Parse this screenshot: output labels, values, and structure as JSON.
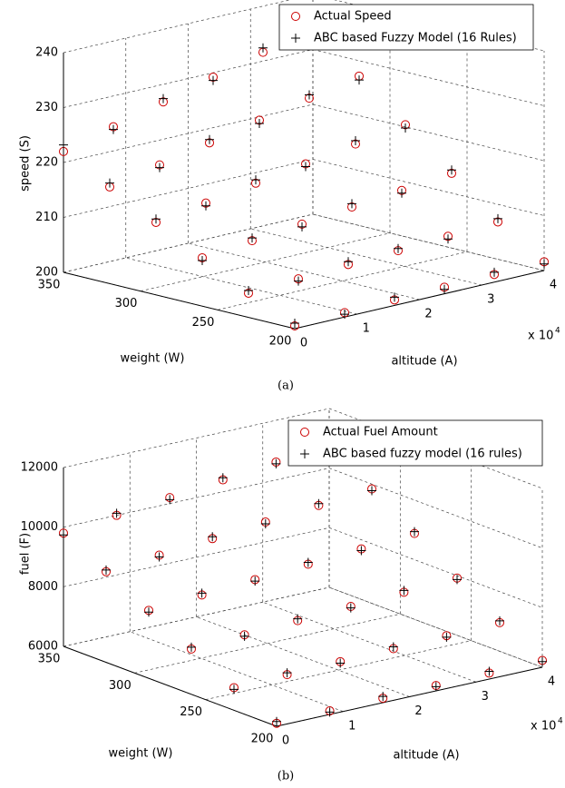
{
  "chart_data": [
    {
      "type": "scatter",
      "zlabel": "speed (S)",
      "ylabel": "weight (W)",
      "xlabel": "altitude (A)",
      "x_multiplier": {
        "base": "x 10",
        "exponent": 4
      },
      "caption": "(a)",
      "grid": true,
      "xlim": [
        0,
        4
      ],
      "xticks": [
        0,
        1,
        2,
        3,
        4
      ],
      "ylim": [
        200,
        350
      ],
      "yticks": [
        200,
        250,
        300,
        350
      ],
      "zlim": [
        200,
        240
      ],
      "zticks": [
        200,
        210,
        220,
        230,
        240
      ],
      "series": [
        {
          "name": "Actual Speed",
          "color": "#cc0000",
          "marker": "o",
          "x": [
            0,
            0.8,
            1.6,
            2.4,
            3.2,
            4,
            0,
            0.8,
            1.6,
            2.4,
            3.2,
            4,
            0,
            0.8,
            1.6,
            2.4,
            3.2,
            4,
            0,
            0.8,
            1.6,
            2.4,
            3.2,
            4,
            0,
            0.8,
            1.6,
            2.4,
            3.2,
            4,
            0,
            0.8,
            1.6,
            2.4,
            3.2,
            4
          ],
          "y": [
            200,
            200,
            200,
            200,
            200,
            200,
            230,
            230,
            230,
            230,
            230,
            230,
            260,
            260,
            260,
            260,
            260,
            260,
            290,
            290,
            290,
            290,
            290,
            290,
            320,
            320,
            320,
            320,
            320,
            320,
            350,
            350,
            350,
            350,
            350,
            350
          ],
          "z": [
            200.5,
            200.8,
            201,
            201.2,
            201.4,
            201.6,
            204.4,
            204.9,
            205.4,
            205.8,
            206.3,
            206.8,
            208.8,
            209.8,
            210.7,
            211.7,
            212.6,
            213.6,
            213.2,
            214.6,
            216.1,
            217.5,
            219,
            220.4,
            217.6,
            219.5,
            221.4,
            223.4,
            225.3,
            227.2,
            222,
            224.4,
            226.8,
            229.2,
            231.6,
            234
          ]
        },
        {
          "name": "ABC based Fuzzy Model (16 Rules)",
          "color": "#000000",
          "marker": "+",
          "x": [
            0,
            0.8,
            1.6,
            2.4,
            3.2,
            4,
            0,
            0.8,
            1.6,
            2.4,
            3.2,
            4,
            0,
            0.8,
            1.6,
            2.4,
            3.2,
            4,
            0,
            0.8,
            1.6,
            2.4,
            3.2,
            4,
            0,
            0.8,
            1.6,
            2.4,
            3.2,
            4,
            0,
            0.8,
            1.6,
            2.4,
            3.2,
            4
          ],
          "y": [
            200,
            200,
            200,
            200,
            200,
            200,
            230,
            230,
            230,
            230,
            230,
            230,
            260,
            260,
            260,
            260,
            260,
            260,
            290,
            290,
            290,
            290,
            290,
            290,
            320,
            320,
            320,
            320,
            320,
            320,
            350,
            350,
            350,
            350,
            350,
            350
          ],
          "z": [
            201,
            200.5,
            201.5,
            200.8,
            201.8,
            201.2,
            204.9,
            204.5,
            205.9,
            206.2,
            205.8,
            207.4,
            208.3,
            210.3,
            210.2,
            212.3,
            212.1,
            214.2,
            213.8,
            214.1,
            216.7,
            217,
            219.6,
            219.8,
            218.3,
            219,
            222,
            222.8,
            225.9,
            226.5,
            223.2,
            223.9,
            227.4,
            228.6,
            232.4,
            232.8
          ]
        }
      ]
    },
    {
      "type": "scatter",
      "zlabel": "fuel (F)",
      "ylabel": "weight (W)",
      "xlabel": "altitude (A)",
      "x_multiplier": {
        "base": "x 10",
        "exponent": 4
      },
      "caption": "(b)",
      "grid": true,
      "xlim": [
        0,
        4
      ],
      "xticks": [
        0,
        1,
        2,
        3,
        4
      ],
      "ylim": [
        200,
        350
      ],
      "yticks": [
        200,
        250,
        300,
        350
      ],
      "zlim": [
        6000,
        12000
      ],
      "zticks": [
        6000,
        8000,
        10000,
        12000
      ],
      "series": [
        {
          "name": "Actual Fuel Amount",
          "color": "#cc0000",
          "marker": "o",
          "x": [
            0,
            0.8,
            1.6,
            2.4,
            3.2,
            4,
            0,
            0.8,
            1.6,
            2.4,
            3.2,
            4,
            0,
            0.8,
            1.6,
            2.4,
            3.2,
            4,
            0,
            0.8,
            1.6,
            2.4,
            3.2,
            4,
            0,
            0.8,
            1.6,
            2.4,
            3.2,
            4,
            0,
            0.8,
            1.6,
            2.4,
            3.2,
            4
          ],
          "y": [
            200,
            200,
            200,
            200,
            200,
            200,
            230,
            230,
            230,
            230,
            230,
            230,
            260,
            260,
            260,
            260,
            260,
            260,
            290,
            290,
            290,
            290,
            290,
            290,
            320,
            320,
            320,
            320,
            320,
            320,
            350,
            350,
            350,
            350,
            350,
            350
          ],
          "z": [
            6100,
            6120,
            6150,
            6180,
            6200,
            6230,
            6760,
            6800,
            6840,
            6880,
            6920,
            6960,
            7520,
            7600,
            7680,
            7760,
            7840,
            7920,
            8280,
            8400,
            8520,
            8640,
            8760,
            8880,
            9040,
            9200,
            9360,
            9520,
            9680,
            9840,
            9800,
            10000,
            10200,
            10400,
            10600,
            10800
          ]
        },
        {
          "name": "ABC based fuzzy model (16 rules)",
          "color": "#000000",
          "marker": "+",
          "x": [
            0,
            0.8,
            1.6,
            2.4,
            3.2,
            4,
            0,
            0.8,
            1.6,
            2.4,
            3.2,
            4,
            0,
            0.8,
            1.6,
            2.4,
            3.2,
            4,
            0,
            0.8,
            1.6,
            2.4,
            3.2,
            4,
            0,
            0.8,
            1.6,
            2.4,
            3.2,
            4,
            0,
            0.8,
            1.6,
            2.4,
            3.2,
            4
          ],
          "y": [
            200,
            200,
            200,
            200,
            200,
            200,
            230,
            230,
            230,
            230,
            230,
            230,
            260,
            260,
            260,
            260,
            260,
            260,
            290,
            290,
            290,
            290,
            290,
            290,
            320,
            320,
            320,
            320,
            320,
            320,
            350,
            350,
            350,
            350,
            350,
            350
          ],
          "z": [
            6160,
            6080,
            6210,
            6140,
            6260,
            6190,
            6700,
            6860,
            6790,
            6940,
            6870,
            7020,
            7580,
            7550,
            7740,
            7710,
            7900,
            7870,
            8220,
            8460,
            8470,
            8700,
            8700,
            8940,
            9100,
            9140,
            9420,
            9460,
            9740,
            9780,
            9740,
            10070,
            10130,
            10470,
            10540,
            10880
          ]
        }
      ]
    }
  ]
}
